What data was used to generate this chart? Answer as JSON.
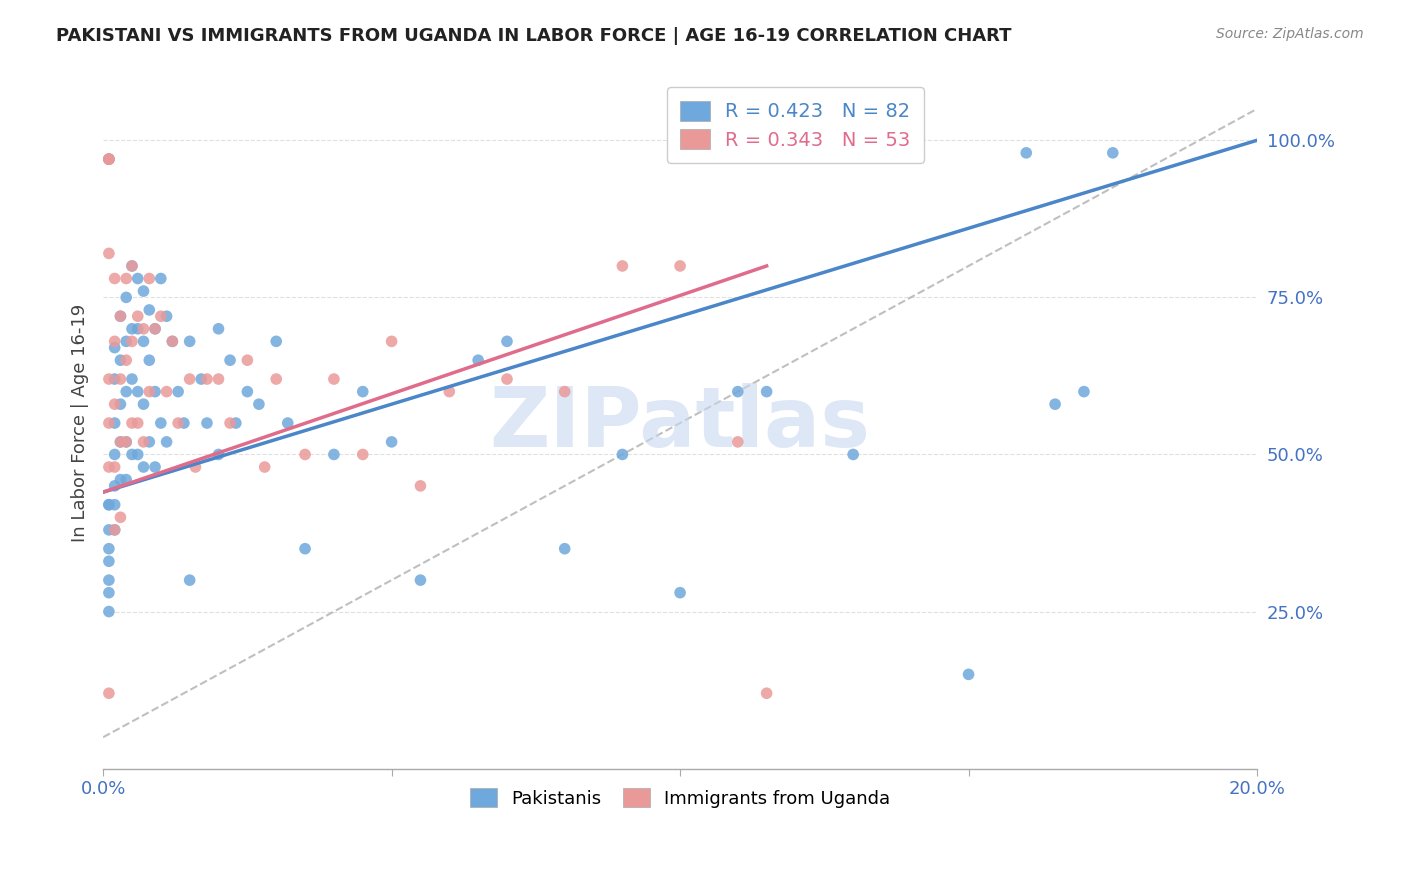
{
  "title": "PAKISTANI VS IMMIGRANTS FROM UGANDA IN LABOR FORCE | AGE 16-19 CORRELATION CHART",
  "source": "Source: ZipAtlas.com",
  "ylabel": "In Labor Force | Age 16-19",
  "xlim": [
    0.0,
    0.2
  ],
  "ylim": [
    0.0,
    1.1
  ],
  "yticks": [
    0.0,
    0.25,
    0.5,
    0.75,
    1.0
  ],
  "ytick_labels": [
    "",
    "25.0%",
    "50.0%",
    "75.0%",
    "100.0%"
  ],
  "xticks": [
    0.0,
    0.05,
    0.1,
    0.15,
    0.2
  ],
  "xtick_labels": [
    "0.0%",
    "",
    "",
    "",
    "20.0%"
  ],
  "blue_R": 0.423,
  "blue_N": 82,
  "pink_R": 0.343,
  "pink_N": 53,
  "blue_color": "#6fa8dc",
  "pink_color": "#ea9999",
  "blue_line_color": "#4a86c8",
  "pink_line_color": "#e06c8c",
  "diagonal_color": "#b0b0b0",
  "watermark_color": "#c8d8f0",
  "title_color": "#222222",
  "axis_color": "#4472c4",
  "blue_line_x": [
    0.0,
    0.2
  ],
  "blue_line_y": [
    0.44,
    1.0
  ],
  "pink_line_x": [
    0.0,
    0.115
  ],
  "pink_line_y": [
    0.44,
    0.8
  ],
  "blue_scatter_x": [
    0.001,
    0.001,
    0.001,
    0.001,
    0.001,
    0.001,
    0.001,
    0.001,
    0.001,
    0.001,
    0.002,
    0.002,
    0.002,
    0.002,
    0.002,
    0.002,
    0.002,
    0.003,
    0.003,
    0.003,
    0.003,
    0.003,
    0.004,
    0.004,
    0.004,
    0.004,
    0.004,
    0.005,
    0.005,
    0.005,
    0.005,
    0.006,
    0.006,
    0.006,
    0.006,
    0.007,
    0.007,
    0.007,
    0.007,
    0.008,
    0.008,
    0.008,
    0.009,
    0.009,
    0.009,
    0.01,
    0.01,
    0.011,
    0.011,
    0.012,
    0.013,
    0.014,
    0.015,
    0.015,
    0.017,
    0.018,
    0.02,
    0.02,
    0.022,
    0.023,
    0.025,
    0.027,
    0.03,
    0.032,
    0.035,
    0.04,
    0.045,
    0.05,
    0.055,
    0.065,
    0.07,
    0.08,
    0.09,
    0.1,
    0.11,
    0.115,
    0.13,
    0.15,
    0.17,
    0.175,
    0.165,
    0.16
  ],
  "blue_scatter_y": [
    0.97,
    0.97,
    0.42,
    0.42,
    0.38,
    0.35,
    0.33,
    0.3,
    0.28,
    0.25,
    0.67,
    0.62,
    0.55,
    0.5,
    0.45,
    0.42,
    0.38,
    0.72,
    0.65,
    0.58,
    0.52,
    0.46,
    0.75,
    0.68,
    0.6,
    0.52,
    0.46,
    0.8,
    0.7,
    0.62,
    0.5,
    0.78,
    0.7,
    0.6,
    0.5,
    0.76,
    0.68,
    0.58,
    0.48,
    0.73,
    0.65,
    0.52,
    0.7,
    0.6,
    0.48,
    0.78,
    0.55,
    0.72,
    0.52,
    0.68,
    0.6,
    0.55,
    0.68,
    0.3,
    0.62,
    0.55,
    0.7,
    0.5,
    0.65,
    0.55,
    0.6,
    0.58,
    0.68,
    0.55,
    0.35,
    0.5,
    0.6,
    0.52,
    0.3,
    0.65,
    0.68,
    0.35,
    0.5,
    0.28,
    0.6,
    0.6,
    0.5,
    0.15,
    0.6,
    0.98,
    0.58,
    0.98
  ],
  "pink_scatter_x": [
    0.001,
    0.001,
    0.001,
    0.001,
    0.001,
    0.001,
    0.001,
    0.002,
    0.002,
    0.002,
    0.002,
    0.002,
    0.003,
    0.003,
    0.003,
    0.003,
    0.004,
    0.004,
    0.004,
    0.005,
    0.005,
    0.005,
    0.006,
    0.006,
    0.007,
    0.007,
    0.008,
    0.008,
    0.009,
    0.01,
    0.011,
    0.012,
    0.013,
    0.015,
    0.016,
    0.018,
    0.02,
    0.022,
    0.025,
    0.028,
    0.03,
    0.035,
    0.04,
    0.045,
    0.05,
    0.055,
    0.06,
    0.07,
    0.08,
    0.09,
    0.1,
    0.11,
    0.115
  ],
  "pink_scatter_y": [
    0.97,
    0.97,
    0.82,
    0.62,
    0.55,
    0.48,
    0.12,
    0.78,
    0.68,
    0.58,
    0.48,
    0.38,
    0.72,
    0.62,
    0.52,
    0.4,
    0.78,
    0.65,
    0.52,
    0.8,
    0.68,
    0.55,
    0.72,
    0.55,
    0.7,
    0.52,
    0.78,
    0.6,
    0.7,
    0.72,
    0.6,
    0.68,
    0.55,
    0.62,
    0.48,
    0.62,
    0.62,
    0.55,
    0.65,
    0.48,
    0.62,
    0.5,
    0.62,
    0.5,
    0.68,
    0.45,
    0.6,
    0.62,
    0.6,
    0.8,
    0.8,
    0.52,
    0.12
  ]
}
